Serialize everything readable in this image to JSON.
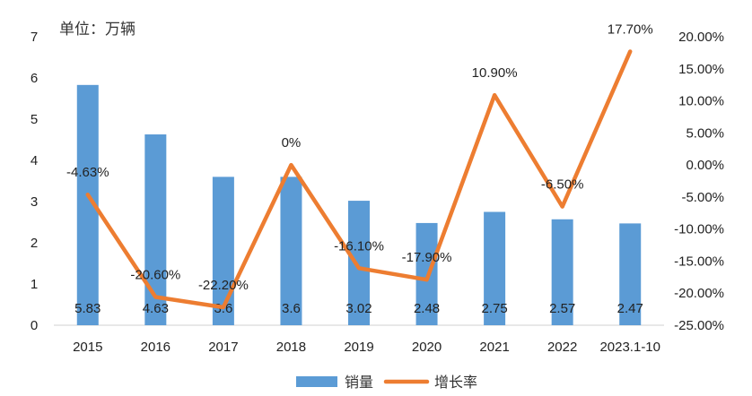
{
  "chart_data": {
    "type": "bar",
    "unit_label": "单位：万辆",
    "categories": [
      "2015",
      "2016",
      "2017",
      "2018",
      "2019",
      "2020",
      "2021",
      "2022",
      "2023.1-10"
    ],
    "series": [
      {
        "name": "销量",
        "type": "bar",
        "axis": "left",
        "color": "#5B9BD5",
        "values": [
          5.83,
          4.63,
          3.6,
          3.6,
          3.02,
          2.48,
          2.75,
          2.57,
          2.47
        ],
        "labels": [
          "5.83",
          "4.63",
          "3.6",
          "3.6",
          "3.02",
          "2.48",
          "2.75",
          "2.57",
          "2.47"
        ]
      },
      {
        "name": "增长率",
        "type": "line",
        "axis": "right",
        "color": "#ED7D31",
        "values": [
          -4.63,
          -20.6,
          -22.2,
          0,
          -16.1,
          -17.9,
          10.9,
          -6.5,
          17.7
        ],
        "labels": [
          "-4.63%",
          "-20.60%",
          "-22.20%",
          "0%",
          "-16.10%",
          "-17.90%",
          "10.90%",
          "-6.50%",
          "17.70%"
        ]
      }
    ],
    "y_left": {
      "min": 0,
      "max": 7,
      "ticks": [
        "0",
        "1",
        "2",
        "3",
        "4",
        "5",
        "6",
        "7"
      ]
    },
    "y_right": {
      "min": -25,
      "max": 20,
      "ticks": [
        "-25.00%",
        "-20.00%",
        "-15.00%",
        "-10.00%",
        "-5.00%",
        "0.00%",
        "5.00%",
        "10.00%",
        "15.00%",
        "20.00%"
      ]
    },
    "grid": false,
    "legend": "bottom"
  }
}
